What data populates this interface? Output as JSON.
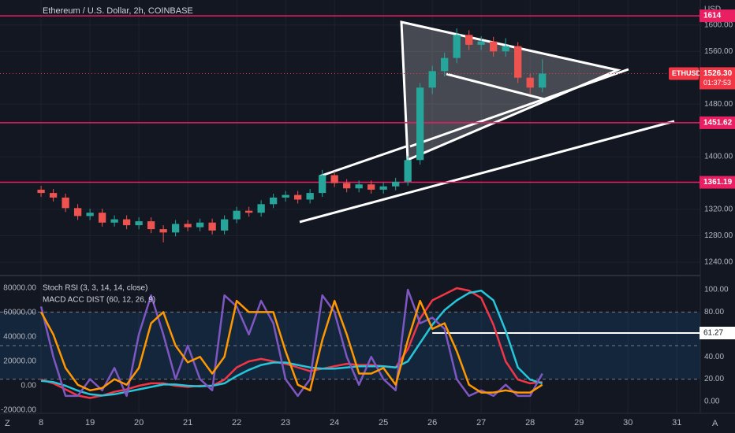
{
  "chart_data": [
    {
      "type": "candlestick",
      "title": "Ethereum / U.S. Dollar, 2h, COINBASE",
      "currency": "USD",
      "symbol": "ETHUSD",
      "countdown": "01:37:53",
      "x": [
        18,
        18.25,
        18.5,
        18.75,
        19,
        19.25,
        19.5,
        19.75,
        20,
        20.25,
        20.5,
        20.75,
        21,
        21.25,
        21.5,
        21.75,
        22,
        22.25,
        22.5,
        22.75,
        23,
        23.25,
        23.5,
        23.75,
        24,
        24.25,
        24.5,
        24.75,
        25,
        25.25,
        25.5,
        25.75,
        26,
        26.25,
        26.5,
        26.75,
        27,
        27.25,
        27.5,
        27.75,
        28,
        28.25
      ],
      "open": [
        1350,
        1345,
        1338,
        1322,
        1310,
        1315,
        1300,
        1305,
        1296,
        1302,
        1290,
        1285,
        1298,
        1293,
        1300,
        1288,
        1305,
        1318,
        1315,
        1328,
        1338,
        1342,
        1335,
        1345,
        1372,
        1360,
        1352,
        1358,
        1350,
        1355,
        1362,
        1395,
        1505,
        1530,
        1550,
        1585,
        1570,
        1575,
        1560,
        1568,
        1520,
        1505
      ],
      "high": [
        1356,
        1351,
        1344,
        1328,
        1321,
        1321,
        1311,
        1311,
        1308,
        1308,
        1296,
        1304,
        1304,
        1306,
        1306,
        1311,
        1324,
        1324,
        1334,
        1344,
        1348,
        1348,
        1351,
        1380,
        1378,
        1366,
        1364,
        1364,
        1361,
        1368,
        1401,
        1512,
        1538,
        1558,
        1595,
        1592,
        1583,
        1582,
        1580,
        1574,
        1526,
        1548
      ],
      "low": [
        1339,
        1332,
        1316,
        1304,
        1304,
        1294,
        1294,
        1290,
        1290,
        1284,
        1270,
        1279,
        1287,
        1287,
        1282,
        1282,
        1299,
        1309,
        1309,
        1322,
        1332,
        1329,
        1329,
        1339,
        1354,
        1346,
        1346,
        1344,
        1344,
        1349,
        1356,
        1388,
        1495,
        1522,
        1542,
        1562,
        1562,
        1552,
        1552,
        1512,
        1495,
        1498
      ],
      "close": [
        1345,
        1338,
        1322,
        1310,
        1315,
        1300,
        1305,
        1296,
        1302,
        1290,
        1285,
        1298,
        1293,
        1300,
        1288,
        1305,
        1318,
        1315,
        1328,
        1338,
        1342,
        1335,
        1345,
        1372,
        1360,
        1352,
        1358,
        1350,
        1355,
        1362,
        1395,
        1505,
        1530,
        1550,
        1585,
        1570,
        1575,
        1560,
        1568,
        1520,
        1505,
        1526.3
      ],
      "up_color": "#26a69a",
      "down_color": "#ef5350",
      "xlim": [
        17.16,
        31.48
      ],
      "xticks": [
        {
          "value": 18,
          "label": "8"
        },
        19,
        20,
        21,
        22,
        23,
        24,
        25,
        26,
        27,
        28,
        29,
        30,
        31
      ],
      "ylim": [
        1222,
        1638
      ],
      "yticks": [
        {
          "value": 1600,
          "label": "1600.00"
        },
        {
          "value": 1560,
          "label": "1560.00"
        },
        {
          "value": 1480,
          "label": "1480.00"
        },
        {
          "value": 1400,
          "label": "1400.00"
        },
        {
          "value": 1320,
          "label": "1320.00"
        },
        {
          "value": 1280,
          "label": "1280.00"
        },
        {
          "value": 1240,
          "label": "1240.00"
        }
      ],
      "levels": [
        1614,
        1451.62,
        1361.19
      ],
      "level_color": "#e91e63",
      "last_price": {
        "value": 1526.3,
        "label": "1526.30"
      },
      "last_color": "#f23645",
      "grid": true
    },
    {
      "type": "line",
      "x": [
        18,
        18.25,
        18.5,
        18.75,
        19,
        19.25,
        19.5,
        19.75,
        20,
        20.25,
        20.5,
        20.75,
        21,
        21.25,
        21.5,
        21.75,
        22,
        22.25,
        22.5,
        22.75,
        23,
        23.25,
        23.5,
        23.75,
        24,
        24.25,
        24.5,
        24.75,
        25,
        25.25,
        25.5,
        25.75,
        26,
        26.25,
        26.5,
        26.75,
        27,
        27.25,
        27.5,
        27.75,
        28,
        28.25
      ],
      "xlim": [
        17.16,
        31.48
      ],
      "title": "Stoch RSI (3, 3, 14, 14, close)",
      "title2": "MACD ACC DIST (60, 12, 26, 9)",
      "ylim": [
        -10.6,
        111.3
      ],
      "yticks": [
        {
          "value": 100,
          "label": "100.00"
        },
        {
          "value": 80,
          "label": "80.00"
        },
        {
          "value": 60,
          "label": "60.00"
        },
        {
          "value": 40,
          "label": "40.00"
        },
        {
          "value": 20,
          "label": "20.00"
        },
        {
          "value": 0,
          "label": "0.00"
        }
      ],
      "y2lim": [
        -22600,
        89000
      ],
      "y2ticks": [
        {
          "value": 80000,
          "label": "80000.00"
        },
        {
          "value": 60000,
          "label": "60000.00"
        },
        {
          "value": 40000,
          "label": "40000.00"
        },
        {
          "value": 20000,
          "label": "20000.00"
        },
        {
          "value": 0,
          "label": "0.00"
        },
        {
          "value": -20000,
          "label": "-20000.00"
        }
      ],
      "bands": [
        80,
        50,
        20
      ],
      "current": 61.27,
      "series": [
        {
          "color": "#f23645",
          "axis": "y2",
          "values": [
            5000,
            2000,
            -3000,
            -8000,
            -10000,
            -8000,
            -5000,
            -3000,
            0,
            2000,
            2000,
            0,
            -1000,
            0,
            0,
            5000,
            15000,
            20000,
            22000,
            20000,
            18000,
            15000,
            12000,
            14000,
            16000,
            18000,
            17000,
            17000,
            16000,
            15000,
            30000,
            55000,
            70000,
            75000,
            80000,
            78000,
            72000,
            50000,
            20000,
            5000,
            2000,
            3000
          ]
        },
        {
          "color": "#26c6da",
          "axis": "y2",
          "values": [
            4000,
            3000,
            0,
            -4000,
            -7000,
            -8000,
            -7000,
            -5000,
            -3000,
            -1000,
            1000,
            1000,
            0,
            -500,
            0,
            2000,
            8000,
            13000,
            17000,
            19000,
            19000,
            17000,
            15000,
            14000,
            14000,
            15000,
            16000,
            16000,
            16000,
            15000,
            20000,
            35000,
            50000,
            62000,
            70000,
            76000,
            78000,
            70000,
            45000,
            15000,
            5000,
            2000
          ]
        },
        {
          "color": "#7e57c2",
          "values": [
            85,
            40,
            5,
            5,
            20,
            10,
            30,
            5,
            60,
            95,
            60,
            20,
            50,
            20,
            10,
            95,
            85,
            60,
            90,
            70,
            20,
            5,
            20,
            95,
            80,
            40,
            15,
            40,
            20,
            10,
            100,
            70,
            75,
            65,
            20,
            5,
            10,
            5,
            15,
            5,
            5,
            25
          ]
        },
        {
          "color": "#ff9800",
          "values": [
            80,
            60,
            30,
            15,
            10,
            12,
            20,
            15,
            30,
            70,
            80,
            50,
            35,
            40,
            25,
            40,
            90,
            80,
            80,
            80,
            45,
            15,
            10,
            55,
            90,
            60,
            25,
            25,
            30,
            15,
            55,
            90,
            65,
            70,
            45,
            15,
            8,
            8,
            10,
            8,
            8,
            15
          ]
        }
      ]
    }
  ]
}
